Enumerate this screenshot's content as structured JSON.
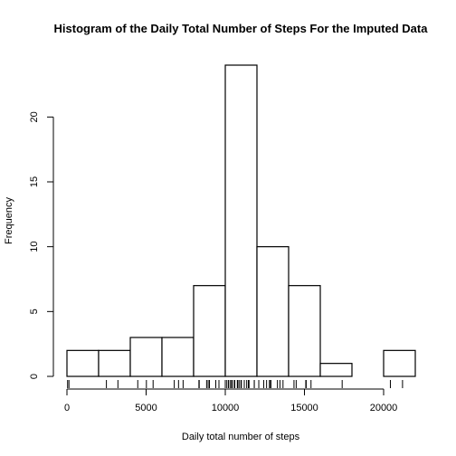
{
  "chart_data": {
    "type": "bar",
    "title": "Histogram of the Daily Total Number of Steps For the Imputed Data",
    "xlabel": "Daily total number of steps",
    "ylabel": "Frequency",
    "bin_edges": [
      0,
      2000,
      4000,
      6000,
      8000,
      10000,
      12000,
      14000,
      16000,
      18000,
      20000,
      22000
    ],
    "values": [
      2,
      2,
      3,
      3,
      7,
      24,
      10,
      7,
      1,
      0,
      2
    ],
    "xlim": [
      0,
      22000
    ],
    "ylim": [
      0,
      24
    ],
    "x_ticks": [
      0,
      5000,
      10000,
      15000,
      20000
    ],
    "x_tick_labels": [
      "0",
      "5000",
      "10000",
      "15000",
      "20000"
    ],
    "y_ticks": [
      0,
      5,
      10,
      15,
      20
    ],
    "y_tick_labels": [
      "0",
      "5",
      "10",
      "15",
      "20"
    ],
    "rug": [
      41,
      126,
      2492,
      3219,
      4472,
      5018,
      5441,
      6778,
      7047,
      7336,
      8334,
      8355,
      8821,
      8918,
      9000,
      9400,
      9600,
      10000,
      10100,
      10200,
      10300,
      10395,
      10439,
      10571,
      10600,
      10765,
      10766,
      10800,
      10900,
      11000,
      11015,
      11200,
      11352,
      11458,
      11500,
      11829,
      11834,
      12116,
      12426,
      12608,
      12787,
      12811,
      12883,
      13294,
      13452,
      13646,
      14339,
      14478,
      15084,
      15110,
      15414,
      17382,
      20427,
      21194
    ],
    "grid": false,
    "legend": "none"
  }
}
